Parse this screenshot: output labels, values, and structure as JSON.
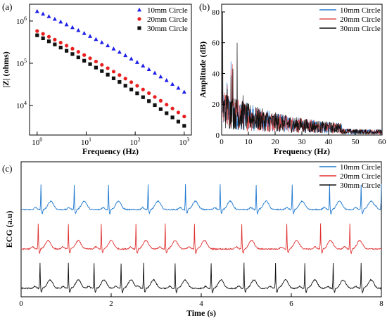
{
  "chart_data": [
    {
      "panel": "(a)",
      "type": "scatter",
      "xscale": "log",
      "yscale": "log",
      "xlabel": "Frequency (Hz)",
      "ylabel": "|Z| (ohms)",
      "xlim": [
        0.7,
        1400
      ],
      "ylim": [
        2000,
        2500000
      ],
      "xticks": [
        {
          "v": 1,
          "label": "10",
          "sup": "0"
        },
        {
          "v": 10,
          "label": "10",
          "sup": "1"
        },
        {
          "v": 100,
          "label": "10",
          "sup": "2"
        },
        {
          "v": 1000,
          "label": "10",
          "sup": "3"
        }
      ],
      "yticks": [
        {
          "v": 10000,
          "label": "10",
          "sup": "4"
        },
        {
          "v": 100000,
          "label": "10",
          "sup": "5"
        },
        {
          "v": 1000000,
          "label": "10",
          "sup": "6"
        }
      ],
      "legend_position": "top-right",
      "series": [
        {
          "name": "10mm Circle",
          "color": "#1f1fe8",
          "marker": "triangle",
          "start": 1700000,
          "end": 21000,
          "curve": 0.22
        },
        {
          "name": "20mm Circle",
          "color": "#e81f1f",
          "marker": "circle",
          "start": 580000,
          "end": 5500,
          "curve": 0.18
        },
        {
          "name": "30mm Circle",
          "color": "#111111",
          "marker": "square",
          "start": 460000,
          "end": 3300,
          "curve": 0.18
        }
      ],
      "points": 26
    },
    {
      "panel": "(b)",
      "type": "line",
      "xlabel": "Frequency (Hz)",
      "ylabel": "Amplitude (dB)",
      "xlim": [
        0,
        60
      ],
      "ylim": [
        0,
        85
      ],
      "xticks": [
        0,
        10,
        20,
        30,
        40,
        50,
        60
      ],
      "yticks": [
        0,
        20,
        40,
        60,
        80
      ],
      "legend_position": "top-right",
      "series": [
        {
          "name": "10mm Circle",
          "color": "#2d7fd4"
        },
        {
          "name": "20mm Circle",
          "color": "#e05050"
        },
        {
          "name": "30mm Circle",
          "color": "#111111"
        }
      ],
      "peaks": [
        {
          "x": 0.4,
          "y": 80
        },
        {
          "x": 2.1,
          "y": 36
        },
        {
          "x": 3.5,
          "y": 48
        },
        {
          "x": 4.2,
          "y": 45
        },
        {
          "x": 5.8,
          "y": 60
        },
        {
          "x": 8,
          "y": 27
        }
      ]
    },
    {
      "panel": "(c)",
      "type": "line",
      "xlabel": "Time (s)",
      "ylabel": "ECG (a.u)",
      "xlim": [
        0,
        8
      ],
      "xticks": [
        0,
        2,
        4,
        6,
        8
      ],
      "legend_position": "top-right",
      "series": [
        {
          "name": "10mm Circle",
          "color": "#1e78d0",
          "beats": [
            0.44,
            1.18,
            1.94,
            2.82,
            3.65,
            4.42,
            5.22,
            6.02,
            6.85,
            7.55,
            8.0
          ]
        },
        {
          "name": "20mm Circle",
          "color": "#e03030",
          "beats": [
            0.38,
            1.05,
            1.78,
            2.55,
            3.2,
            3.85,
            4.9,
            5.9,
            6.65,
            7.3
          ]
        },
        {
          "name": "30mm Circle",
          "color": "#111111",
          "beats": [
            0.42,
            1.05,
            1.62,
            2.22,
            2.72,
            3.42,
            4.22,
            4.95,
            5.65,
            6.3,
            6.93,
            7.55
          ]
        }
      ]
    }
  ]
}
